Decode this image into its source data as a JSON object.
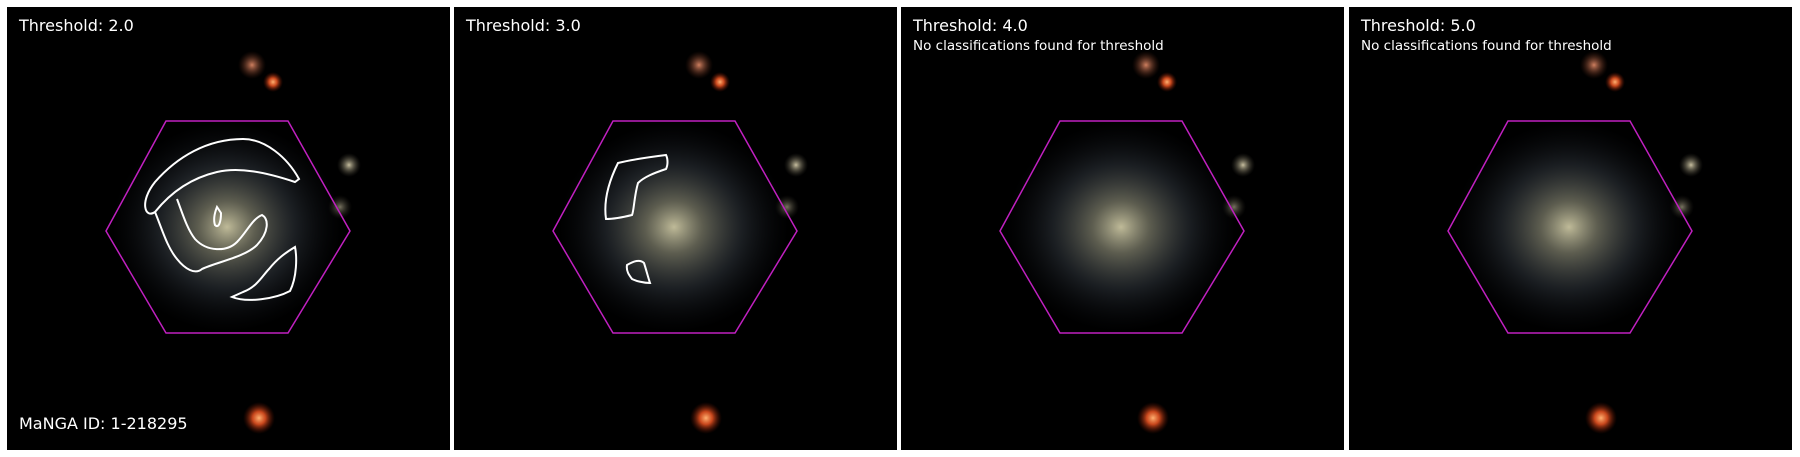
{
  "panels": [
    {
      "title": "Threshold: 2.0",
      "note": "",
      "has_contour": true,
      "contour_variant": "t2"
    },
    {
      "title": "Threshold: 3.0",
      "note": "",
      "has_contour": true,
      "contour_variant": "t3"
    },
    {
      "title": "Threshold: 4.0",
      "note": "No classifications found for threshold",
      "has_contour": false
    },
    {
      "title": "Threshold: 5.0",
      "note": "No classifications found for threshold",
      "has_contour": false
    }
  ],
  "manga_id": "MaNGA ID: 1-218295",
  "colors": {
    "background": "#000000",
    "hexagon": "#c020c0",
    "contour": "#ffffff",
    "text": "#ffffff",
    "panel_border": "#ffffff"
  }
}
